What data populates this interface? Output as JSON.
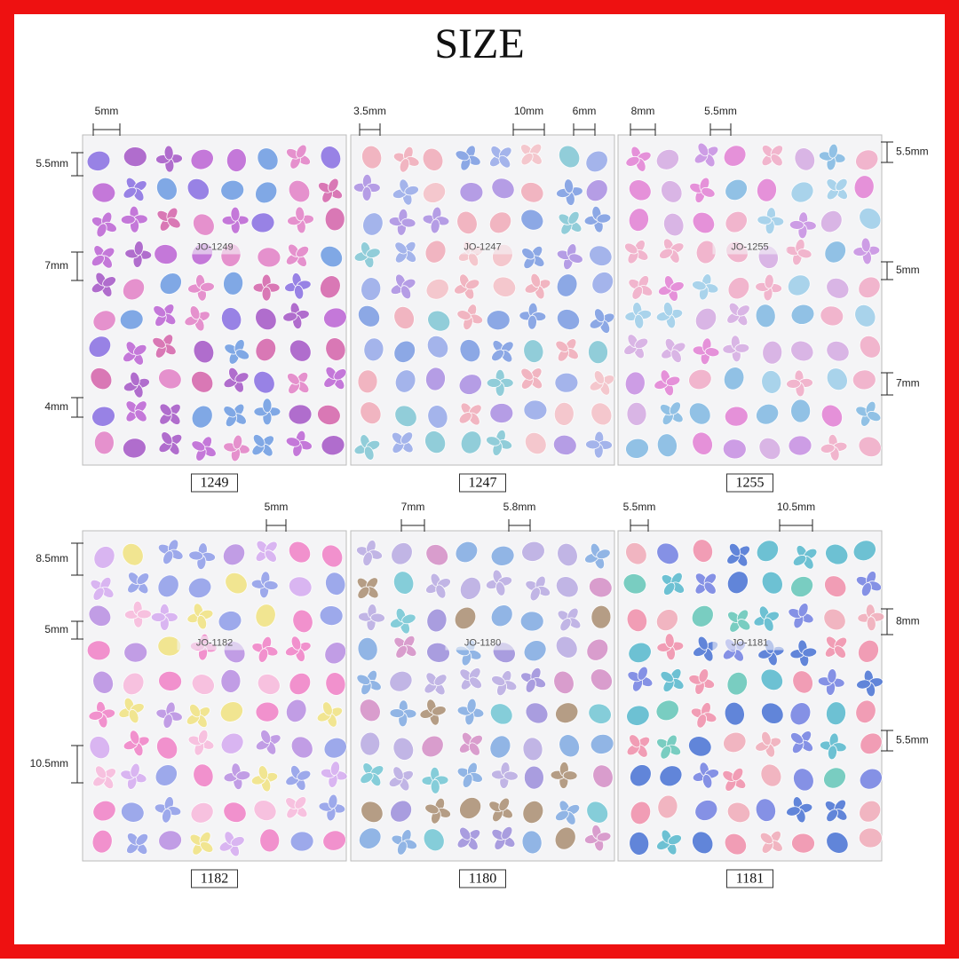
{
  "title": "SIZE",
  "sheets": [
    {
      "code": "1249",
      "label": "JO-1249",
      "dims": [
        "5mm",
        "5.5mm",
        "7mm",
        "4mm"
      ]
    },
    {
      "code": "1247",
      "label": "JO-1247",
      "dims": [
        "3.5mm",
        "10mm",
        "6mm"
      ]
    },
    {
      "code": "1255",
      "label": "JO-1255",
      "dims": [
        "8mm",
        "5.5mm",
        "5.5mm",
        "5mm",
        "7mm"
      ]
    },
    {
      "code": "1182",
      "label": "JO-1182",
      "dims": [
        "5mm",
        "8.5mm",
        "5mm",
        "10.5mm"
      ]
    },
    {
      "code": "1180",
      "label": "JO-1180",
      "dims": [
        "7mm",
        "5.8mm"
      ]
    },
    {
      "code": "1181",
      "label": "JO-1181",
      "dims": [
        "5.5mm",
        "10.5mm",
        "8mm",
        "5.5mm"
      ]
    }
  ]
}
